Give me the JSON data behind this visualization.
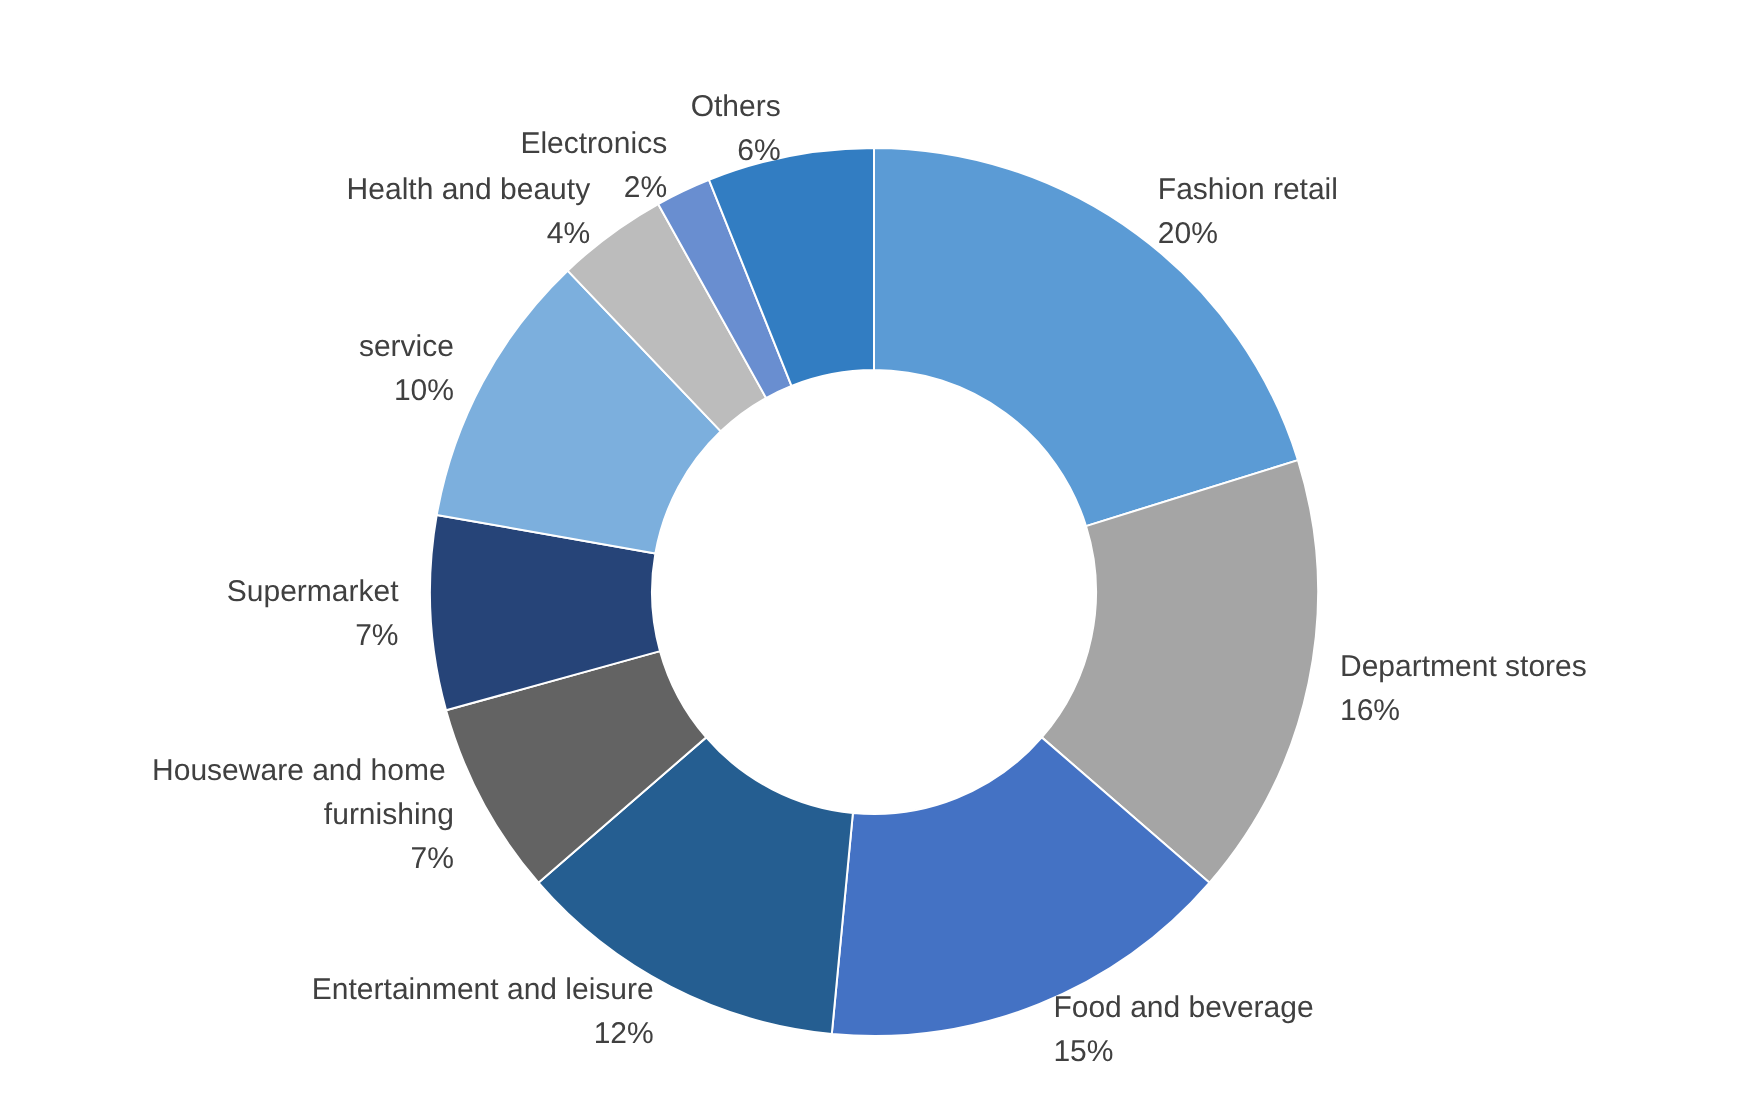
{
  "chart_data": {
    "type": "donut",
    "categories": [
      "Fashion retail",
      "Department stores",
      "Food and beverage",
      "Entertainment and leisure",
      "Houseware and home furnishing",
      "Supermarket",
      "service",
      "Health and beauty",
      "Electronics",
      "Others"
    ],
    "values": [
      20,
      16,
      15,
      12,
      7,
      7,
      10,
      4,
      2,
      6
    ],
    "value_labels": [
      "20%",
      "16%",
      "15%",
      "12%",
      "7%",
      "7%",
      "10%",
      "4%",
      "2%",
      "6%"
    ],
    "colors": [
      "#5b9bd5",
      "#a5a5a5",
      "#4472c4",
      "#255e91",
      "#636363",
      "#264478",
      "#7cafdd",
      "#bcbcbc",
      "#698ed0",
      "#327dc2"
    ],
    "legend": false
  }
}
